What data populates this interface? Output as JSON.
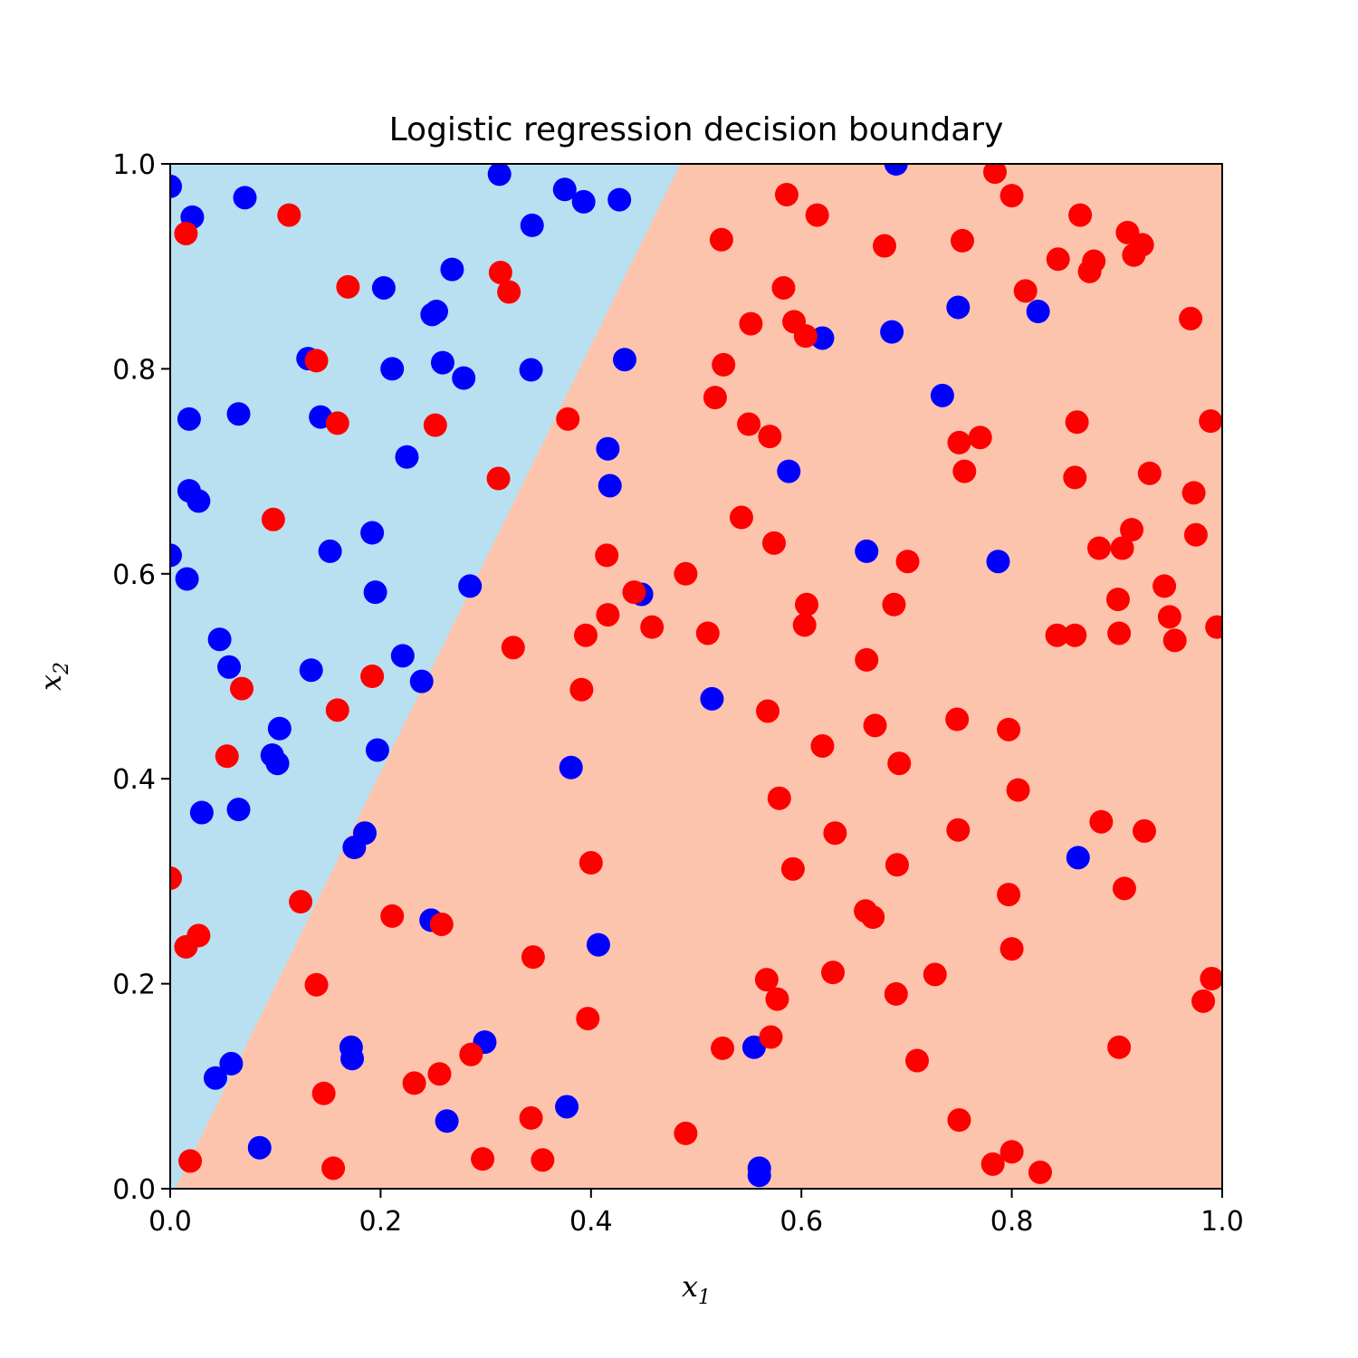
{
  "chart_data": {
    "type": "scatter",
    "title": "Logistic regression decision boundary",
    "xlabel": "x",
    "xlabel_sub": "1",
    "ylabel": "x",
    "ylabel_sub": "2",
    "xlim": [
      0.0,
      1.0
    ],
    "ylim": [
      0.0,
      1.0
    ],
    "xticks": [
      "0.0",
      "0.2",
      "0.4",
      "0.6",
      "0.8",
      "1.0"
    ],
    "yticks": [
      "0.0",
      "0.2",
      "0.4",
      "0.6",
      "0.8",
      "1.0"
    ],
    "grid": false,
    "legend": "none",
    "colors": {
      "region_blue": "#b9e0f1",
      "region_red": "#fcc4ad",
      "point_blue": "#0000ff",
      "point_red": "#ff0000"
    },
    "decision_boundary": [
      [
        0.005,
        0.0
      ],
      [
        0.485,
        1.0
      ]
    ],
    "series": [
      {
        "color": "blue",
        "points": [
          [
            0.0,
            0.978
          ],
          [
            0.021,
            0.948
          ],
          [
            0.071,
            0.967
          ],
          [
            0.313,
            0.99
          ],
          [
            0.375,
            0.975
          ],
          [
            0.393,
            0.963
          ],
          [
            0.427,
            0.965
          ],
          [
            0.344,
            0.94
          ],
          [
            0.268,
            0.897
          ],
          [
            0.203,
            0.879
          ],
          [
            0.249,
            0.853
          ],
          [
            0.253,
            0.856
          ],
          [
            0.131,
            0.81
          ],
          [
            0.211,
            0.8
          ],
          [
            0.259,
            0.806
          ],
          [
            0.279,
            0.791
          ],
          [
            0.343,
            0.799
          ],
          [
            0.432,
            0.809
          ],
          [
            0.018,
            0.751
          ],
          [
            0.065,
            0.756
          ],
          [
            0.143,
            0.753
          ],
          [
            0.225,
            0.714
          ],
          [
            0.416,
            0.722
          ],
          [
            0.418,
            0.686
          ],
          [
            0.018,
            0.681
          ],
          [
            0.027,
            0.671
          ],
          [
            0.0,
            0.618
          ],
          [
            0.016,
            0.595
          ],
          [
            0.152,
            0.622
          ],
          [
            0.192,
            0.64
          ],
          [
            0.195,
            0.582
          ],
          [
            0.285,
            0.588
          ],
          [
            0.047,
            0.536
          ],
          [
            0.056,
            0.509
          ],
          [
            0.134,
            0.506
          ],
          [
            0.221,
            0.52
          ],
          [
            0.239,
            0.495
          ],
          [
            0.104,
            0.449
          ],
          [
            0.097,
            0.423
          ],
          [
            0.102,
            0.415
          ],
          [
            0.197,
            0.428
          ],
          [
            0.03,
            0.367
          ],
          [
            0.065,
            0.37
          ],
          [
            0.175,
            0.333
          ],
          [
            0.185,
            0.347
          ],
          [
            0.248,
            0.262
          ],
          [
            0.043,
            0.108
          ],
          [
            0.058,
            0.122
          ],
          [
            0.085,
            0.04
          ],
          [
            0.172,
            0.138
          ],
          [
            0.173,
            0.127
          ],
          [
            0.299,
            0.143
          ],
          [
            0.263,
            0.066
          ],
          [
            0.377,
            0.08
          ],
          [
            0.381,
            0.411
          ],
          [
            0.407,
            0.238
          ],
          [
            0.448,
            0.58
          ],
          [
            0.515,
            0.478
          ],
          [
            0.555,
            0.138
          ],
          [
            0.56,
            0.02
          ],
          [
            0.56,
            0.013
          ],
          [
            0.588,
            0.7
          ],
          [
            0.62,
            0.83
          ],
          [
            0.662,
            0.622
          ],
          [
            0.69,
            1.0
          ],
          [
            0.686,
            0.836
          ],
          [
            0.734,
            0.774
          ],
          [
            0.749,
            0.86
          ],
          [
            0.787,
            0.612
          ],
          [
            0.825,
            0.856
          ],
          [
            0.863,
            0.323
          ]
        ]
      },
      {
        "color": "red",
        "points": [
          [
            0.015,
            0.932
          ],
          [
            0.113,
            0.95
          ],
          [
            0.169,
            0.88
          ],
          [
            0.314,
            0.894
          ],
          [
            0.322,
            0.875
          ],
          [
            0.139,
            0.808
          ],
          [
            0.159,
            0.747
          ],
          [
            0.252,
            0.745
          ],
          [
            0.312,
            0.693
          ],
          [
            0.378,
            0.751
          ],
          [
            0.098,
            0.653
          ],
          [
            0.068,
            0.488
          ],
          [
            0.054,
            0.422
          ],
          [
            0.192,
            0.5
          ],
          [
            0.159,
            0.467
          ],
          [
            0.326,
            0.528
          ],
          [
            0.0,
            0.303
          ],
          [
            0.124,
            0.28
          ],
          [
            0.015,
            0.236
          ],
          [
            0.027,
            0.247
          ],
          [
            0.211,
            0.266
          ],
          [
            0.258,
            0.258
          ],
          [
            0.139,
            0.199
          ],
          [
            0.146,
            0.093
          ],
          [
            0.155,
            0.02
          ],
          [
            0.019,
            0.027
          ],
          [
            0.232,
            0.103
          ],
          [
            0.256,
            0.112
          ],
          [
            0.286,
            0.131
          ],
          [
            0.297,
            0.029
          ],
          [
            0.343,
            0.069
          ],
          [
            0.345,
            0.226
          ],
          [
            0.354,
            0.028
          ],
          [
            0.397,
            0.166
          ],
          [
            0.4,
            0.318
          ],
          [
            0.391,
            0.487
          ],
          [
            0.395,
            0.54
          ],
          [
            0.415,
            0.618
          ],
          [
            0.416,
            0.56
          ],
          [
            0.441,
            0.582
          ],
          [
            0.458,
            0.548
          ],
          [
            0.49,
            0.6
          ],
          [
            0.49,
            0.054
          ],
          [
            0.511,
            0.542
          ],
          [
            0.518,
            0.772
          ],
          [
            0.524,
            0.926
          ],
          [
            0.526,
            0.804
          ],
          [
            0.525,
            0.137
          ],
          [
            0.543,
            0.655
          ],
          [
            0.55,
            0.746
          ],
          [
            0.552,
            0.844
          ],
          [
            0.567,
            0.204
          ],
          [
            0.568,
            0.466
          ],
          [
            0.571,
            0.148
          ],
          [
            0.57,
            0.734
          ],
          [
            0.574,
            0.63
          ],
          [
            0.577,
            0.185
          ],
          [
            0.579,
            0.381
          ],
          [
            0.583,
            0.879
          ],
          [
            0.586,
            0.97
          ],
          [
            0.592,
            0.312
          ],
          [
            0.593,
            0.846
          ],
          [
            0.604,
            0.832
          ],
          [
            0.603,
            0.55
          ],
          [
            0.605,
            0.57
          ],
          [
            0.615,
            0.95
          ],
          [
            0.62,
            0.432
          ],
          [
            0.63,
            0.211
          ],
          [
            0.632,
            0.347
          ],
          [
            0.661,
            0.271
          ],
          [
            0.662,
            0.516
          ],
          [
            0.668,
            0.265
          ],
          [
            0.67,
            0.452
          ],
          [
            0.679,
            0.92
          ],
          [
            0.688,
            0.57
          ],
          [
            0.69,
            0.19
          ],
          [
            0.691,
            0.316
          ],
          [
            0.693,
            0.415
          ],
          [
            0.701,
            0.612
          ],
          [
            0.71,
            0.125
          ],
          [
            0.727,
            0.209
          ],
          [
            0.748,
            0.458
          ],
          [
            0.75,
            0.728
          ],
          [
            0.75,
            0.067
          ],
          [
            0.749,
            0.35
          ],
          [
            0.753,
            0.925
          ],
          [
            0.755,
            0.7
          ],
          [
            0.77,
            0.733
          ],
          [
            0.782,
            0.024
          ],
          [
            0.784,
            0.992
          ],
          [
            0.797,
            0.448
          ],
          [
            0.797,
            0.287
          ],
          [
            0.8,
            0.036
          ],
          [
            0.8,
            0.234
          ],
          [
            0.8,
            0.969
          ],
          [
            0.806,
            0.389
          ],
          [
            0.813,
            0.876
          ],
          [
            0.843,
            0.54
          ],
          [
            0.844,
            0.907
          ],
          [
            0.827,
            0.016
          ],
          [
            0.86,
            0.54
          ],
          [
            0.86,
            0.694
          ],
          [
            0.862,
            0.748
          ],
          [
            0.865,
            0.95
          ],
          [
            0.874,
            0.895
          ],
          [
            0.878,
            0.905
          ],
          [
            0.883,
            0.625
          ],
          [
            0.885,
            0.358
          ],
          [
            0.901,
            0.575
          ],
          [
            0.902,
            0.542
          ],
          [
            0.902,
            0.138
          ],
          [
            0.905,
            0.625
          ],
          [
            0.907,
            0.293
          ],
          [
            0.91,
            0.933
          ],
          [
            0.914,
            0.643
          ],
          [
            0.916,
            0.911
          ],
          [
            0.924,
            0.921
          ],
          [
            0.926,
            0.349
          ],
          [
            0.931,
            0.698
          ],
          [
            0.945,
            0.588
          ],
          [
            0.95,
            0.558
          ],
          [
            0.955,
            0.535
          ],
          [
            0.97,
            0.849
          ],
          [
            0.973,
            0.679
          ],
          [
            0.975,
            0.638
          ],
          [
            0.982,
            0.183
          ],
          [
            0.989,
            0.749
          ],
          [
            0.99,
            0.205
          ],
          [
            0.995,
            0.548
          ]
        ]
      }
    ]
  }
}
